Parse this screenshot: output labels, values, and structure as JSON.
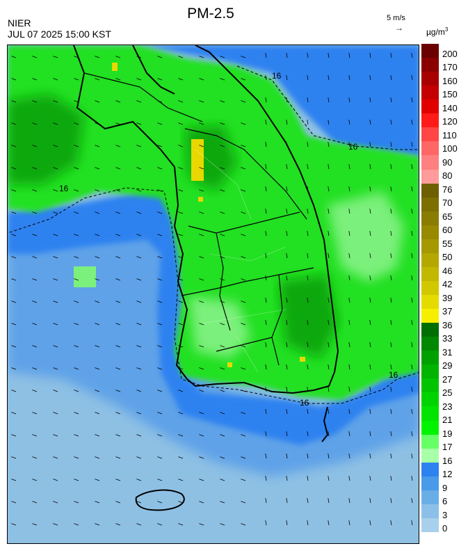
{
  "title": "PM-2.5",
  "agency": "NIER",
  "datetime": "JUL 07 2025 15:00 KST",
  "wind_reference": {
    "label": "5 m/s",
    "arrow": "→"
  },
  "unit": {
    "base": "µg/m",
    "exp": "3"
  },
  "contour_label": "16",
  "colorbar": {
    "labels": [
      "200",
      "170",
      "160",
      "150",
      "140",
      "120",
      "110",
      "100",
      "90",
      "80",
      "76",
      "70",
      "65",
      "60",
      "55",
      "50",
      "46",
      "42",
      "39",
      "37",
      "36",
      "33",
      "31",
      "29",
      "27",
      "25",
      "23",
      "21",
      "19",
      "17",
      "16",
      "12",
      "9",
      "6",
      "3",
      "0"
    ],
    "colors": [
      "#6b0000",
      "#8a0000",
      "#a80000",
      "#c40000",
      "#e00000",
      "#ff1a1a",
      "#ff4545",
      "#ff6666",
      "#ff8080",
      "#ff9b9b",
      "#6e6000",
      "#7c6e00",
      "#8a7c00",
      "#978a00",
      "#a69800",
      "#b4a800",
      "#c2b800",
      "#d2c800",
      "#e4dc00",
      "#f6f000",
      "#006e00",
      "#008800",
      "#00a000",
      "#00b400",
      "#00c400",
      "#00d400",
      "#00e400",
      "#00f400",
      "#66ff66",
      "#a8ffa8",
      "#2d82f0",
      "#4a9aea",
      "#6aaee8",
      "#8cc0e8",
      "#a8d0ec"
    ]
  },
  "colors": {
    "sea_light": "#8ec0e4",
    "sea_mid": "#5fa2e8",
    "sea_deep": "#2d82f0",
    "land_green": "#22e022",
    "land_green_dark": "#0aa80a",
    "land_green_light": "#7cf07c",
    "hotspot_yellow": "#e8d800",
    "boundary": "#000000"
  }
}
